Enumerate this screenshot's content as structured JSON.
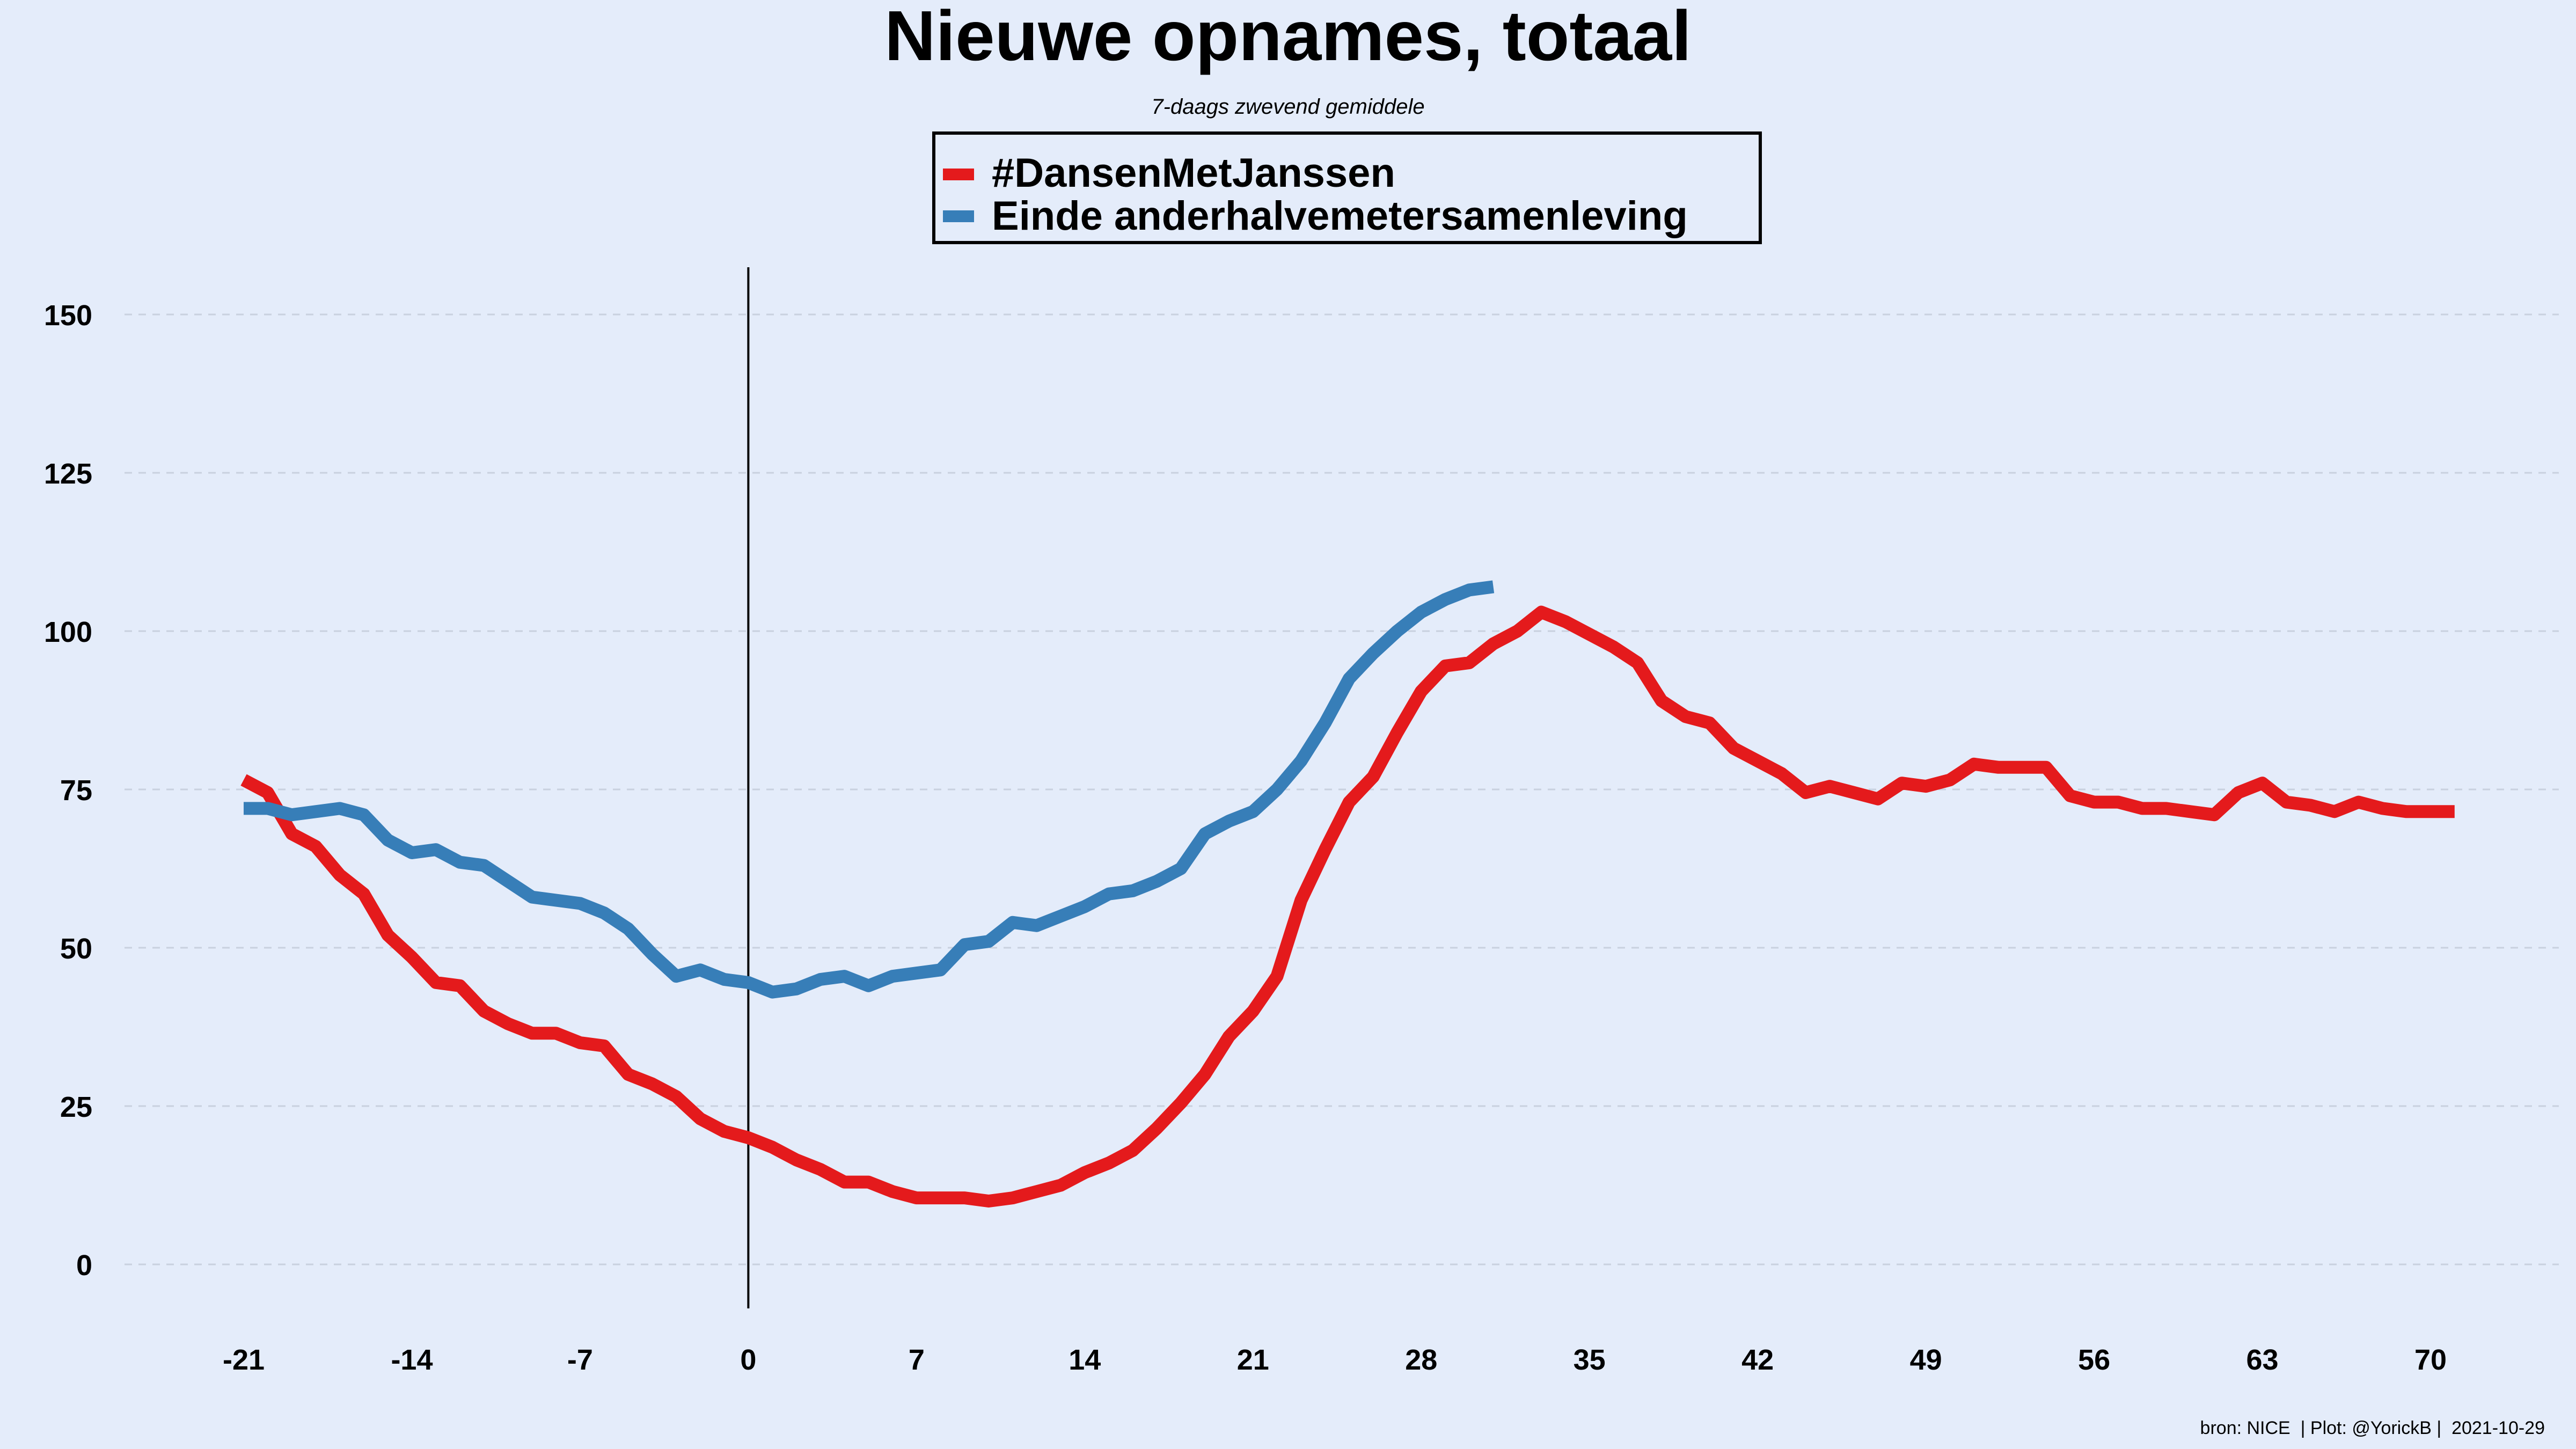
{
  "chart_data": {
    "type": "line",
    "title": "Nieuwe opnames, totaal",
    "subtitle": "7-daags zwevend gemiddele",
    "caption": "bron: NICE  | Plot: @YorickB |  2021-10-29",
    "xlabel": "",
    "ylabel": "",
    "xlim": [
      -21,
      70
    ],
    "ylim": [
      0,
      150
    ],
    "x_ticks": [
      -21,
      -14,
      -7,
      0,
      7,
      14,
      21,
      28,
      35,
      42,
      49,
      56,
      63,
      70
    ],
    "y_ticks": [
      0,
      25,
      50,
      75,
      100,
      125,
      150
    ],
    "grid": "horizontal dashed",
    "legend_position": "top-center",
    "vline_x": 0,
    "series": [
      {
        "name": "#DansenMetJanssen",
        "color": "#e41a1c",
        "x": [
          -21,
          -20,
          -19,
          -18,
          -17,
          -16,
          -15,
          -14,
          -13,
          -12,
          -11,
          -10,
          -9,
          -8,
          -7,
          -6,
          -5,
          -4,
          -3,
          -2,
          -1,
          0,
          1,
          2,
          3,
          4,
          5,
          6,
          7,
          8,
          9,
          10,
          11,
          12,
          13,
          14,
          15,
          16,
          17,
          18,
          19,
          20,
          21,
          22,
          23,
          24,
          25,
          26,
          27,
          28,
          29,
          30,
          31,
          32,
          33,
          34,
          35,
          36,
          37,
          38,
          39,
          40,
          41,
          42,
          43,
          44,
          45,
          46,
          47,
          48,
          49,
          50,
          51,
          52,
          53,
          54,
          55,
          56,
          57,
          58,
          59,
          60,
          61,
          62,
          63,
          64,
          65,
          66,
          67,
          68,
          69,
          70,
          71
        ],
        "y": [
          76.5,
          74.5,
          68,
          66,
          61.5,
          58.5,
          52,
          48.5,
          44.5,
          44,
          40,
          38,
          36.5,
          36.5,
          35,
          34.5,
          30,
          28.5,
          26.5,
          23,
          21,
          20,
          18.5,
          16.5,
          15,
          13,
          13,
          11.5,
          10.5,
          10.5,
          10.5,
          10,
          10.5,
          11.5,
          12.5,
          14.5,
          16,
          18,
          21.5,
          25.5,
          30,
          36,
          40,
          45.5,
          57.5,
          65.5,
          73,
          77,
          84,
          90.5,
          94.5,
          95,
          98,
          100,
          103,
          101.5,
          99.5,
          97.5,
          95,
          89,
          86.5,
          85.5,
          81.5,
          79.5,
          77.5,
          74.5,
          75.5,
          74.5,
          73.5,
          76,
          75.5,
          76.5,
          79,
          78.5,
          78.5,
          78.5,
          74,
          73,
          73,
          72,
          72,
          71.5,
          71,
          74.5,
          76,
          73,
          72.5,
          71.5,
          73,
          72,
          71.5,
          71.5,
          71.5
        ]
      },
      {
        "name": "Einde anderhalvemetersamenleving",
        "color": "#377eb8",
        "x": [
          -21,
          -20,
          -19,
          -18,
          -17,
          -16,
          -15,
          -14,
          -13,
          -12,
          -11,
          -10,
          -9,
          -8,
          -7,
          -6,
          -5,
          -4,
          -3,
          -2,
          -1,
          0,
          1,
          2,
          3,
          4,
          5,
          6,
          7,
          8,
          9,
          10,
          11,
          12,
          13,
          14,
          15,
          16,
          17,
          18,
          19,
          20,
          21,
          22,
          23,
          24,
          25,
          26,
          27,
          28,
          29,
          30,
          31
        ],
        "y": [
          72,
          72,
          71,
          71.5,
          72,
          71,
          67,
          65,
          65.5,
          63.5,
          63,
          60.5,
          58,
          57.5,
          57,
          55.5,
          53,
          49,
          45.5,
          46.5,
          45,
          44.5,
          43,
          43.5,
          45,
          45.5,
          44,
          45.5,
          46,
          46.5,
          50.5,
          51,
          54,
          53.5,
          55,
          56.5,
          58.5,
          59,
          60.5,
          62.5,
          68,
          70,
          71.5,
          75,
          79.5,
          85.5,
          92.5,
          96.5,
          100,
          103,
          105,
          106.5,
          107
        ]
      }
    ]
  }
}
